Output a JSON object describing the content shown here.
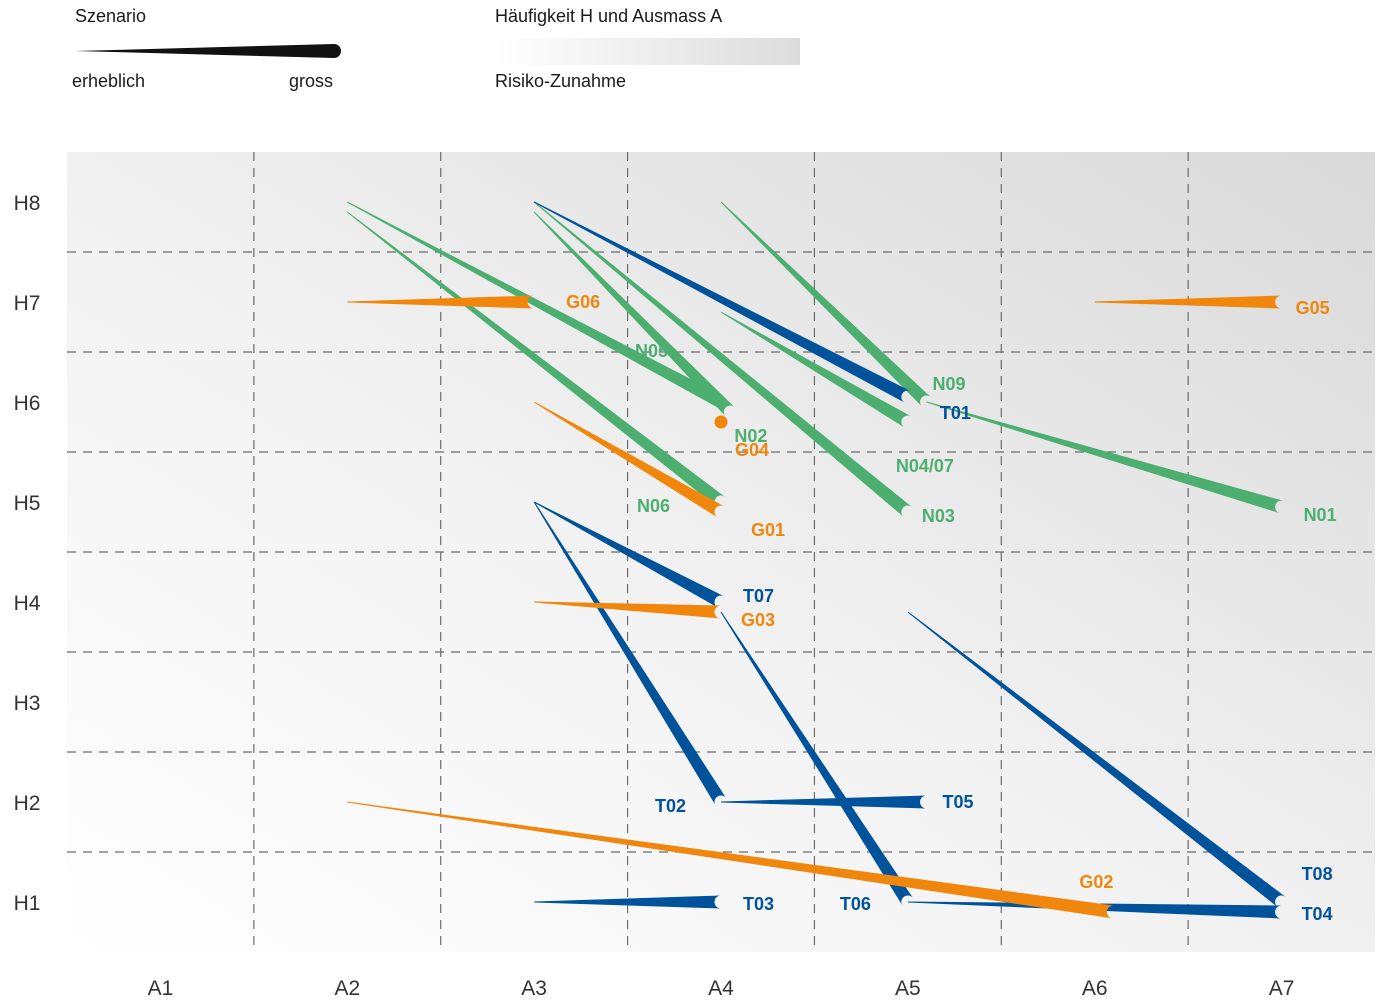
{
  "legend": {
    "scenario_title": "Szenario",
    "scenario_small": "erheblich",
    "scenario_large": "gross",
    "risk_title": "Häufigkeit H und Ausmass A",
    "risk_caption": "Risiko-Zunahme"
  },
  "colors": {
    "green": "#4daf6f",
    "blue": "#00539b",
    "orange": "#f0870c",
    "grid": "#6b6b6b"
  },
  "chart_data": {
    "type": "scatter",
    "xlabel": "",
    "ylabel": "",
    "x_categories": [
      "A1",
      "A2",
      "A3",
      "A4",
      "A5",
      "A6",
      "A7"
    ],
    "y_categories": [
      "H1",
      "H2",
      "H3",
      "H4",
      "H5",
      "H6",
      "H7",
      "H8"
    ],
    "xlim": [
      0.5,
      7.5
    ],
    "ylim": [
      0.5,
      8.5
    ],
    "grid": true,
    "background": "gradient: white at lower-left to light grey at upper-right (risk increase)",
    "series": [
      {
        "name": "N01",
        "color": "green",
        "from": [
          5.1,
          6.0
        ],
        "to": [
          7.0,
          4.95
        ]
      },
      {
        "name": "N02",
        "color": "green",
        "from": [
          3.0,
          7.9
        ],
        "to": [
          4.05,
          5.9
        ]
      },
      {
        "name": "N03",
        "color": "green",
        "from": [
          3.0,
          8.0
        ],
        "to": [
          5.0,
          4.9
        ]
      },
      {
        "name": "N04/07",
        "color": "green",
        "from": [
          4.0,
          6.9
        ],
        "to": [
          5.0,
          5.8
        ]
      },
      {
        "name": "N05",
        "color": "green",
        "from": [
          2.0,
          8.0
        ],
        "to": [
          4.0,
          6.0
        ]
      },
      {
        "name": "N06",
        "color": "green",
        "from": [
          2.0,
          7.9
        ],
        "to": [
          4.0,
          5.0
        ]
      },
      {
        "name": "N09",
        "color": "green",
        "from": [
          4.0,
          8.0
        ],
        "to": [
          5.1,
          6.0
        ]
      },
      {
        "name": "T01",
        "color": "blue",
        "from": [
          3.0,
          8.0
        ],
        "to": [
          5.0,
          6.05
        ]
      },
      {
        "name": "T02",
        "color": "blue",
        "from": [
          3.0,
          5.0
        ],
        "to": [
          4.0,
          2.0
        ]
      },
      {
        "name": "T03",
        "color": "blue",
        "from": [
          3.0,
          1.0
        ],
        "to": [
          4.0,
          1.0
        ]
      },
      {
        "name": "T04",
        "color": "blue",
        "from": [
          5.0,
          1.0
        ],
        "to": [
          7.0,
          0.9
        ]
      },
      {
        "name": "T05",
        "color": "blue",
        "from": [
          4.0,
          2.0
        ],
        "to": [
          5.1,
          2.0
        ]
      },
      {
        "name": "T06",
        "color": "blue",
        "from": [
          4.0,
          3.9
        ],
        "to": [
          5.0,
          1.0
        ]
      },
      {
        "name": "T07",
        "color": "blue",
        "from": [
          3.0,
          5.0
        ],
        "to": [
          4.0,
          4.0
        ]
      },
      {
        "name": "T08",
        "color": "blue",
        "from": [
          5.0,
          3.9
        ],
        "to": [
          7.0,
          1.0
        ]
      },
      {
        "name": "G01",
        "color": "orange",
        "from": [
          3.0,
          6.0
        ],
        "to": [
          4.0,
          4.9
        ]
      },
      {
        "name": "G02",
        "color": "orange",
        "from": [
          2.0,
          2.0
        ],
        "to": [
          6.1,
          0.9
        ]
      },
      {
        "name": "G03",
        "color": "orange",
        "from": [
          3.0,
          4.0
        ],
        "to": [
          4.0,
          3.9
        ]
      },
      {
        "name": "G04",
        "color": "orange",
        "from": [
          4.0,
          5.8
        ],
        "to": [
          4.0,
          5.8
        ]
      },
      {
        "name": "G05",
        "color": "orange",
        "from": [
          6.0,
          7.0
        ],
        "to": [
          7.0,
          7.0
        ]
      },
      {
        "name": "G06",
        "color": "orange",
        "from": [
          2.0,
          7.0
        ],
        "to": [
          3.0,
          7.0
        ]
      }
    ]
  }
}
